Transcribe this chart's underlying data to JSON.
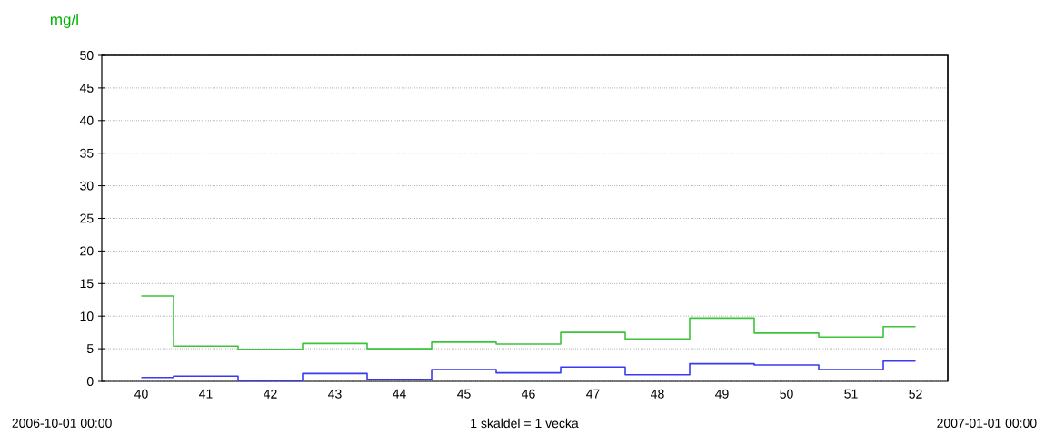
{
  "chart_data": {
    "type": "step",
    "ylabel": "mg/l",
    "categories": [
      "40",
      "41",
      "42",
      "43",
      "44",
      "45",
      "46",
      "47",
      "48",
      "49",
      "50",
      "51",
      "52"
    ],
    "series": [
      {
        "color": "#3cc43c",
        "values": [
          13.1,
          5.4,
          4.9,
          5.8,
          5.0,
          6.0,
          5.7,
          7.5,
          6.5,
          9.7,
          7.4,
          6.8,
          8.4
        ]
      },
      {
        "color": "#3a3af0",
        "values": [
          0.6,
          0.8,
          0.1,
          1.2,
          0.3,
          1.8,
          1.3,
          2.2,
          1.0,
          2.7,
          2.5,
          1.8,
          3.1
        ]
      }
    ],
    "ylim": [
      0,
      50
    ],
    "yticks": [
      0,
      5,
      10,
      15,
      20,
      25,
      30,
      35,
      40,
      45,
      50
    ],
    "grid": "y",
    "marker": "none",
    "line_style": "solid",
    "annotations": [
      "2006-10-01 00:00",
      "1 skaldel = 1 vecka",
      "2007-01-01 00:00"
    ]
  }
}
